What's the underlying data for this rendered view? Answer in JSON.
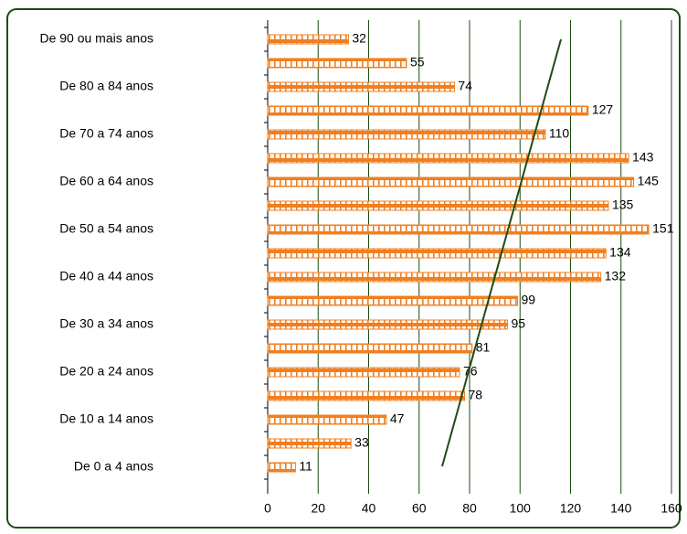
{
  "chart_data": {
    "type": "bar",
    "orientation": "horizontal",
    "categories": [
      "De 0 a 4 anos",
      null,
      "De 10 a 14 anos",
      null,
      "De 20 a 24 anos",
      null,
      "De 30 a 34 anos",
      null,
      "De 40 a 44 anos",
      null,
      "De 50 a 54 anos",
      null,
      "De 60 a 64 anos",
      null,
      "De 70 a 74 anos",
      null,
      "De 80 a 84 anos",
      null,
      "De 90 ou mais anos"
    ],
    "values": [
      11,
      33,
      47,
      78,
      76,
      81,
      95,
      99,
      132,
      134,
      151,
      135,
      145,
      143,
      110,
      127,
      74,
      55,
      32
    ],
    "color": "#f07f21",
    "xlim": [
      0,
      160
    ],
    "xticks": [
      0,
      20,
      40,
      60,
      80,
      100,
      120,
      140,
      160
    ],
    "grid": true
  }
}
